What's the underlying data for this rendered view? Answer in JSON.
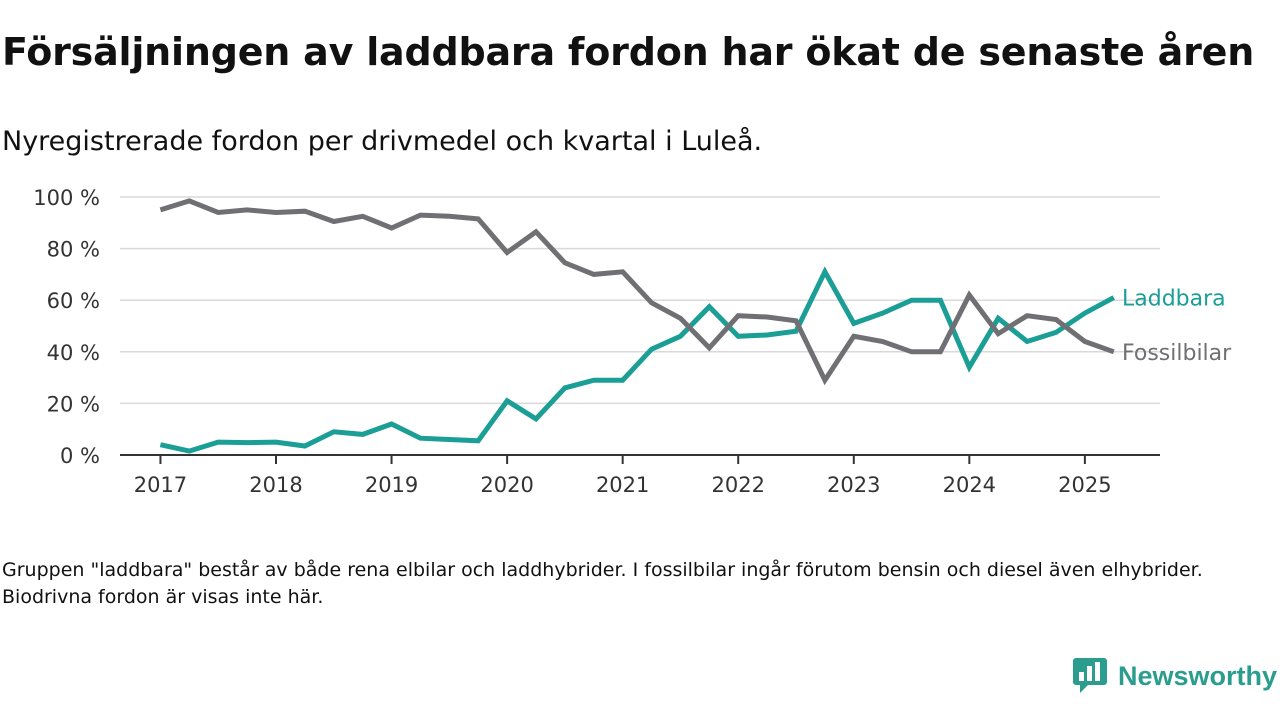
{
  "title": "Försäljningen av laddbara fordon har ökat de senaste åren",
  "subtitle": "Nyregistrerade fordon per drivmedel och kvartal i Luleå.",
  "note": "Gruppen \"laddbara\" består av både rena elbilar och laddhybrider. I fossilbilar ingår förutom bensin och diesel även elhybrider. Biodrivna fordon är visas inte här.",
  "brand": {
    "name": "Newsworthy",
    "logo_icon": "newsworthy-chart-icon",
    "color": "#2a9d8f"
  },
  "chart_data": {
    "type": "line",
    "x": [
      2017,
      2017.25,
      2017.5,
      2017.75,
      2018,
      2018.25,
      2018.5,
      2018.75,
      2019,
      2019.25,
      2019.5,
      2019.75,
      2020,
      2020.25,
      2020.5,
      2020.75,
      2021,
      2021.25,
      2021.5,
      2021.75,
      2022,
      2022.25,
      2022.5,
      2022.75,
      2023,
      2023.25,
      2023.5,
      2023.75,
      2024,
      2024.25,
      2024.5,
      2024.75,
      2025,
      2025.25
    ],
    "x_ticks": [
      2017,
      2018,
      2019,
      2020,
      2021,
      2022,
      2023,
      2024,
      2025
    ],
    "x_tick_labels": [
      "2017",
      "2018",
      "2019",
      "2020",
      "2021",
      "2022",
      "2023",
      "2024",
      "2025"
    ],
    "xlim": [
      2016.65,
      2025.65
    ],
    "ylim": [
      0,
      100
    ],
    "y_ticks": [
      0,
      20,
      40,
      60,
      80,
      100
    ],
    "y_tick_labels": [
      "0 %",
      "20 %",
      "40 %",
      "60 %",
      "80 %",
      "100 %"
    ],
    "grid": "horizontal",
    "legend": "direct labels at line ends (right)",
    "series": [
      {
        "name": "Laddbara",
        "color": "#1a9e96",
        "values": [
          4,
          1.5,
          5,
          4.8,
          5,
          3.5,
          9,
          8,
          12,
          6.5,
          6,
          5.5,
          21,
          14,
          26,
          29,
          29,
          41,
          46,
          57.5,
          46,
          46.5,
          48,
          71,
          51,
          55,
          60,
          60,
          34,
          53,
          44,
          47.5,
          55,
          61
        ]
      },
      {
        "name": "Fossilbilar",
        "color": "#707074",
        "values": [
          95,
          98.5,
          94,
          95,
          94,
          94.5,
          90.5,
          92.5,
          88,
          93,
          92.5,
          91.5,
          78.5,
          86.5,
          74.5,
          70,
          71,
          59,
          53,
          41.5,
          54,
          53.5,
          52,
          29,
          46,
          44,
          40,
          40,
          62,
          47,
          54,
          52.5,
          44,
          40
        ]
      }
    ]
  }
}
